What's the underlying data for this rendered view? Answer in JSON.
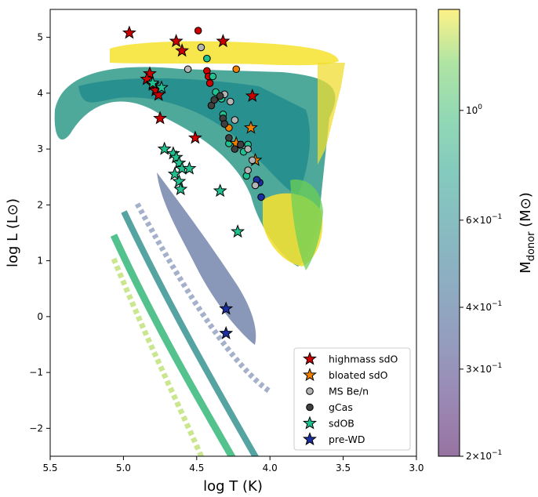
{
  "chart_data": {
    "type": "scatter",
    "xlabel": "log T (K)",
    "ylabel": "log L (L⊙)",
    "xlim": [
      5.5,
      3.0
    ],
    "ylim": [
      -2.5,
      5.5
    ],
    "x_ticks": [
      "5.5",
      "5.0",
      "4.5",
      "4.0",
      "3.5",
      "3.0"
    ],
    "x_tick_values": [
      5.5,
      5.0,
      4.5,
      4.0,
      3.5,
      3.0
    ],
    "y_ticks": [
      "−2",
      "−1",
      "0",
      "1",
      "2",
      "3",
      "4",
      "5"
    ],
    "y_tick_values": [
      -2,
      -1,
      0,
      1,
      2,
      3,
      4,
      5
    ],
    "colorbar": {
      "label": "Mdonor (M⊙)",
      "label_main": "M",
      "label_sub": "donor",
      "label_unit": " (M⊙)",
      "scale": "log",
      "range": [
        0.2,
        1.6
      ],
      "colormap": "viridis",
      "tick_values": [
        0.2,
        0.3,
        0.4,
        0.6,
        1.0
      ],
      "tick_bases": [
        "2×10",
        "3×10",
        "4×10",
        "6×10",
        "10"
      ],
      "tick_exps": [
        "−1",
        "−1",
        "−1",
        "−1",
        "0"
      ]
    },
    "legend": {
      "placement": "lower-right"
    },
    "series": [
      {
        "name": "highmass sdO",
        "marker": "star",
        "color": "#cc0000",
        "points": [
          [
            4.96,
            5.08
          ],
          [
            4.64,
            4.93
          ],
          [
            4.32,
            4.93
          ],
          [
            4.6,
            4.76
          ],
          [
            4.82,
            4.35
          ],
          [
            4.84,
            4.25
          ],
          [
            4.8,
            4.15
          ],
          [
            4.78,
            4.05
          ],
          [
            4.76,
            3.97
          ],
          [
            4.12,
            3.95
          ],
          [
            4.75,
            3.55
          ],
          [
            4.51,
            3.2
          ]
        ]
      },
      {
        "name": "bloated sdO",
        "marker": "star",
        "color": "#f08000",
        "points": [
          [
            4.13,
            3.38
          ],
          [
            4.23,
            3.1
          ],
          [
            4.1,
            2.8
          ]
        ]
      },
      {
        "name": "MS Be/n",
        "marker": "circle",
        "color": "#b4b4b4",
        "points": [
          [
            4.47,
            4.82
          ],
          [
            4.56,
            4.43
          ],
          [
            4.31,
            3.98
          ],
          [
            4.27,
            3.85
          ],
          [
            4.24,
            3.52
          ],
          [
            4.15,
            3.0
          ],
          [
            4.12,
            2.8
          ],
          [
            4.15,
            2.62
          ],
          [
            4.1,
            2.35
          ]
        ]
      },
      {
        "name": "gCas",
        "marker": "circle",
        "color": "#404040",
        "points": [
          [
            4.4,
            3.78
          ],
          [
            4.38,
            3.88
          ],
          [
            4.34,
            3.95
          ],
          [
            4.32,
            3.55
          ],
          [
            4.31,
            3.45
          ],
          [
            4.28,
            3.2
          ],
          [
            4.24,
            3.0
          ],
          [
            4.2,
            3.08
          ]
        ]
      },
      {
        "name": "sdOB",
        "marker": "star",
        "color": "#20c090",
        "points": [
          [
            4.8,
            4.18
          ],
          [
            4.74,
            4.1
          ],
          [
            4.72,
            3.0
          ],
          [
            4.66,
            2.92
          ],
          [
            4.64,
            2.85
          ],
          [
            4.62,
            2.75
          ],
          [
            4.6,
            2.65
          ],
          [
            4.55,
            2.65
          ],
          [
            4.65,
            2.55
          ],
          [
            4.62,
            2.42
          ],
          [
            4.61,
            2.28
          ],
          [
            4.34,
            2.25
          ],
          [
            4.22,
            1.52
          ]
        ]
      },
      {
        "name": "pre-WD",
        "marker": "star",
        "color": "#1a2fa0",
        "points": [
          [
            4.3,
            0.14
          ],
          [
            4.3,
            -0.3
          ]
        ]
      }
    ],
    "extra_points": [
      {
        "color": "#cc0000",
        "marker": "circle",
        "points": [
          [
            4.49,
            5.12
          ],
          [
            4.43,
            4.4
          ],
          [
            4.42,
            4.3
          ],
          [
            4.41,
            4.18
          ]
        ]
      },
      {
        "color": "#f08000",
        "marker": "circle",
        "points": [
          [
            4.23,
            4.43
          ],
          [
            4.28,
            3.38
          ]
        ]
      },
      {
        "color": "#20c090",
        "marker": "circle",
        "points": [
          [
            4.43,
            4.62
          ],
          [
            4.39,
            4.3
          ],
          [
            4.37,
            4.02
          ],
          [
            4.33,
            3.9
          ],
          [
            4.32,
            3.62
          ],
          [
            4.28,
            3.1
          ],
          [
            4.15,
            3.08
          ],
          [
            4.18,
            2.95
          ],
          [
            4.16,
            2.52
          ]
        ]
      },
      {
        "color": "#1a2fa0",
        "marker": "circle",
        "points": [
          [
            4.07,
            2.4
          ],
          [
            4.06,
            2.14
          ],
          [
            4.09,
            2.45
          ]
        ]
      }
    ]
  }
}
